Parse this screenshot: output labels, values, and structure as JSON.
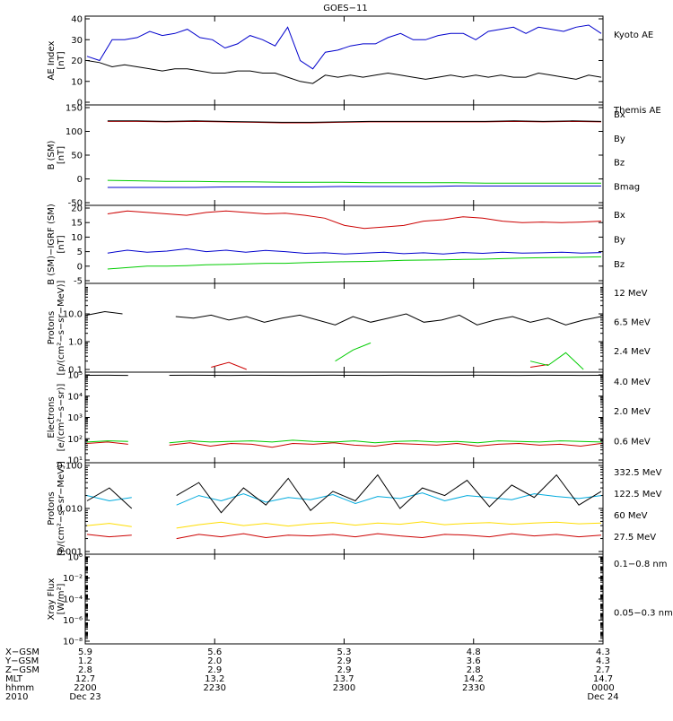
{
  "title": "GOES−11",
  "chart_data": [
    {
      "type": "line",
      "ylabel": [
        "AE Index",
        "[nT]"
      ],
      "ylim": [
        0,
        40
      ],
      "yticks": [
        "0",
        "10",
        "20",
        "30",
        "40"
      ],
      "scale": "linear",
      "series": [
        {
          "name": "Kyoto AE",
          "color": "#0000cc",
          "values": [
            22,
            20,
            30,
            30,
            31,
            34,
            32,
            33,
            35,
            31,
            30,
            26,
            28,
            32,
            30,
            27,
            36,
            20,
            16,
            24,
            25,
            27,
            28,
            28,
            31,
            33,
            30,
            30,
            32,
            33,
            33,
            30,
            34,
            35,
            36,
            33,
            36,
            35,
            34,
            36,
            37,
            33
          ]
        },
        {
          "name": "Themis AE",
          "color": "#000000",
          "values": [
            20,
            19,
            17,
            18,
            17,
            16,
            15,
            16,
            16,
            15,
            14,
            14,
            15,
            15,
            14,
            14,
            12,
            10,
            9,
            13,
            12,
            13,
            12,
            13,
            14,
            13,
            12,
            11,
            12,
            13,
            12,
            13,
            12,
            13,
            12,
            12,
            14,
            13,
            12,
            11,
            13,
            12
          ]
        }
      ]
    },
    {
      "type": "line",
      "ylabel": [
        "B (SM)",
        "[nT]"
      ],
      "ylim": [
        -50,
        150
      ],
      "yticks": [
        "-50",
        "0",
        "50",
        "100",
        "150"
      ],
      "scale": "linear",
      "series": [
        {
          "name": "Bx",
          "color": "#0000cc",
          "values": [
            -18,
            -18,
            -18,
            -18,
            -17,
            -17,
            -17,
            -17,
            -16,
            -16,
            -16,
            -16,
            -15,
            -15,
            -15,
            -15,
            -15,
            -15
          ]
        },
        {
          "name": "By",
          "color": "#00cc00",
          "values": [
            -3,
            -4,
            -5,
            -5,
            -6,
            -6,
            -7,
            -7,
            -7,
            -8,
            -8,
            -8,
            -8,
            -9,
            -9,
            -9,
            -9,
            -9
          ]
        },
        {
          "name": "Bz",
          "color": "#cc0000",
          "values": [
            121,
            121,
            120,
            121,
            120,
            119,
            118,
            118,
            119,
            120,
            120,
            120,
            120,
            120,
            121,
            120,
            121,
            120
          ]
        },
        {
          "name": "Bmag",
          "color": "#000000",
          "values": [
            122,
            122,
            121,
            122,
            121,
            120,
            119,
            119,
            120,
            121,
            121,
            121,
            121,
            121,
            122,
            121,
            122,
            121
          ]
        }
      ]
    },
    {
      "type": "line",
      "ylabel": [
        "B (SM)−IGRF (SM)",
        "[nT]"
      ],
      "ylim": [
        -5,
        20
      ],
      "yticks": [
        "-5",
        "0",
        "5",
        "10",
        "15",
        "20"
      ],
      "scale": "linear",
      "series": [
        {
          "name": "Bx",
          "color": "#0000cc",
          "values": [
            4.5,
            5.5,
            4.8,
            5.2,
            6,
            5,
            5.5,
            4.8,
            5.4,
            5,
            4.4,
            4.6,
            4.2,
            4.5,
            4.8,
            4.3,
            4.6,
            4.2,
            4.7,
            4.4,
            4.8,
            4.5,
            4.6,
            4.8,
            4.5,
            4.7
          ]
        },
        {
          "name": "By",
          "color": "#00cc00",
          "values": [
            -1,
            -0.5,
            0,
            0,
            0.2,
            0.5,
            0.6,
            0.8,
            1,
            1,
            1.2,
            1.4,
            1.5,
            1.6,
            1.8,
            2,
            2.1,
            2.2,
            2.3,
            2.4,
            2.6,
            2.8,
            2.9,
            3,
            3.1,
            3.2
          ]
        },
        {
          "name": "Bz",
          "color": "#cc0000",
          "values": [
            18,
            19,
            18.5,
            18,
            17.5,
            18.5,
            19,
            18.5,
            18,
            18.2,
            17.5,
            16.5,
            14,
            13,
            13.5,
            14,
            15.5,
            16,
            17,
            16.5,
            15.5,
            15,
            15.2,
            15,
            15.2,
            15.5
          ]
        }
      ]
    },
    {
      "type": "line",
      "ylabel": [
        "Protons",
        "[p/(cm²−s−sr−MeV)]"
      ],
      "ylim": [
        0.1,
        100
      ],
      "yticks": [
        "0.1",
        "1.0",
        "10.0"
      ],
      "scale": "log",
      "series": [
        {
          "name": "12 MeV",
          "color": "#cc0000",
          "values": [
            null,
            null,
            null,
            null,
            null,
            null,
            null,
            0.12,
            0.18,
            0.1,
            null,
            null,
            null,
            null,
            null,
            null,
            null,
            null,
            null,
            null,
            null,
            null,
            null,
            null,
            null,
            0.12,
            0.15,
            null,
            null,
            null
          ]
        },
        {
          "name": "6.5 MeV",
          "color": "#00cc00",
          "values": [
            0.2,
            null,
            null,
            null,
            null,
            null,
            null,
            null,
            null,
            null,
            0.15,
            null,
            null,
            null,
            0.2,
            0.5,
            0.9,
            null,
            null,
            0.12,
            null,
            null,
            null,
            null,
            null,
            0.2,
            0.14,
            0.4,
            0.1,
            null
          ]
        },
        {
          "name": "2.4 MeV",
          "color": "#000000",
          "values": [
            9,
            12,
            10,
            null,
            null,
            8,
            7,
            9,
            6,
            8,
            5,
            7,
            9,
            6,
            4,
            8,
            5,
            7,
            10,
            5,
            6,
            9,
            4,
            6,
            8,
            5,
            7,
            4,
            6,
            8
          ]
        }
      ]
    },
    {
      "type": "line",
      "ylabel": [
        "Electrons",
        "[e/(cm²−s−sr)]"
      ],
      "ylim": [
        10,
        100000
      ],
      "yticks": [
        "10¹",
        "10²",
        "10³",
        "10⁴",
        "10⁵"
      ],
      "scale": "log",
      "series": [
        {
          "name": "4.0 MeV",
          "color": "#cc0000",
          "values": [
            60,
            70,
            55,
            null,
            50,
            65,
            45,
            60,
            55,
            40,
            60,
            55,
            65,
            50,
            45,
            60,
            55,
            50,
            60,
            45,
            55,
            60,
            50,
            55,
            45,
            60
          ]
        },
        {
          "name": "2.0 MeV",
          "color": "#00cc00",
          "values": [
            70,
            80,
            75,
            null,
            65,
            80,
            70,
            75,
            80,
            70,
            85,
            75,
            70,
            80,
            65,
            75,
            80,
            70,
            75,
            65,
            80,
            75,
            70,
            80,
            75,
            70
          ]
        },
        {
          "name": "0.6 MeV",
          "color": "#000000",
          "values": [
            95000,
            96000,
            94000,
            null,
            95000,
            96000,
            95000,
            94000,
            96000,
            95000,
            94000,
            95000,
            96000,
            95000,
            94000,
            96000,
            95000,
            94000,
            95000,
            96000,
            95000,
            94000,
            96000,
            95000,
            94000,
            95000
          ]
        }
      ]
    },
    {
      "type": "line",
      "ylabel": [
        "Protons",
        "[p/(cm²−s−sr−MeV)]"
      ],
      "ylim": [
        0.001,
        0.1
      ],
      "yticks": [
        "0.001",
        "0.010",
        "0.100"
      ],
      "scale": "log",
      "series": [
        {
          "name": "332.5 MeV",
          "color": "#cc0000",
          "values": [
            0.0025,
            0.0022,
            0.0024,
            null,
            0.002,
            0.0025,
            0.0022,
            0.0026,
            0.0021,
            0.0024,
            0.0023,
            0.0025,
            0.0022,
            0.0026,
            0.0023,
            0.0021,
            0.0025,
            0.0024,
            0.0022,
            0.0026,
            0.0023,
            0.0025,
            0.0022,
            0.0024
          ]
        },
        {
          "name": "122.5 MeV",
          "color": "#ffdd00",
          "values": [
            0.004,
            0.0045,
            0.0038,
            null,
            0.0035,
            0.0042,
            0.0048,
            0.004,
            0.0045,
            0.0039,
            0.0044,
            0.0047,
            0.0041,
            0.0046,
            0.0043,
            0.0049,
            0.0042,
            0.0045,
            0.0047,
            0.0043,
            0.0046,
            0.0048,
            0.0044,
            0.0046
          ]
        },
        {
          "name": "60 MeV",
          "color": "#00aadd",
          "values": [
            0.02,
            0.015,
            0.018,
            null,
            0.012,
            0.02,
            0.015,
            0.022,
            0.014,
            0.018,
            0.016,
            0.021,
            0.013,
            0.019,
            0.017,
            0.023,
            0.015,
            0.02,
            0.018,
            0.016,
            0.022,
            0.019,
            0.017,
            0.02
          ]
        },
        {
          "name": "27.5 MeV",
          "color": "#000000",
          "values": [
            0.015,
            0.03,
            0.01,
            null,
            0.02,
            0.04,
            0.008,
            0.03,
            0.012,
            0.05,
            0.009,
            0.025,
            0.015,
            0.06,
            0.01,
            0.03,
            0.02,
            0.045,
            0.011,
            0.035,
            0.018,
            0.06,
            0.012,
            0.025
          ]
        }
      ]
    },
    {
      "type": "line",
      "ylabel": [
        "Xray Flux",
        "[W/m²]"
      ],
      "ylim": [
        1e-09,
        1
      ],
      "yticks": [
        "10⁻⁸",
        "10⁻⁶",
        "10⁻⁴",
        "10⁻²",
        "10⁰"
      ],
      "scale": "log",
      "series": [
        {
          "name": "0.1−0.8 nm",
          "color": "#cc0000",
          "values": []
        },
        {
          "name": "0.05−0.3 nm",
          "color": "#0000cc",
          "values": []
        }
      ]
    }
  ],
  "footer": {
    "row_labels": [
      "X−GSM",
      "Y−GSM",
      "Z−GSM",
      "MLT",
      "hhmm",
      "2010"
    ],
    "columns": [
      [
        "5.9",
        "1.2",
        "2.8",
        "12.7",
        "2200",
        "Dec 23"
      ],
      [
        "5.6",
        "2.0",
        "2.9",
        "13.2",
        "2230",
        ""
      ],
      [
        "5.3",
        "2.9",
        "2.9",
        "13.7",
        "2300",
        ""
      ],
      [
        "4.8",
        "3.6",
        "2.8",
        "14.2",
        "2330",
        ""
      ],
      [
        "4.3",
        "4.3",
        "2.7",
        "14.7",
        "0000",
        "Dec 24"
      ]
    ]
  }
}
